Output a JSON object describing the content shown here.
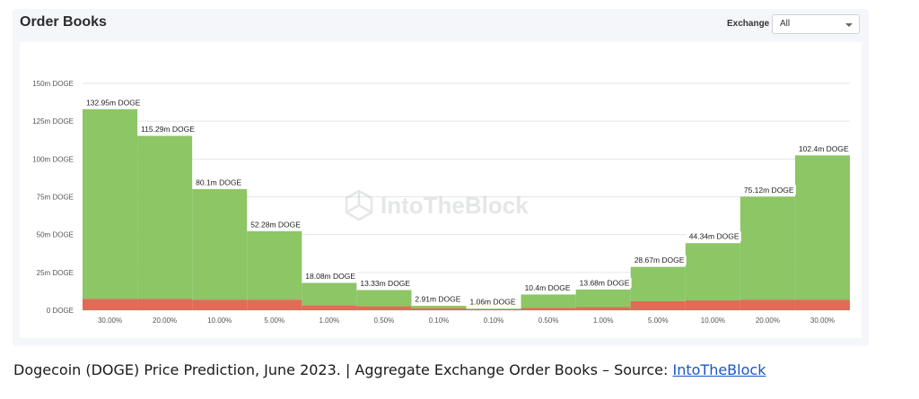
{
  "card": {
    "title": "Order Books",
    "exchange_label": "Exchange",
    "exchange_value": "All"
  },
  "watermark": "IntoTheBlock",
  "caption": {
    "text": "Dogecoin (DOGE) Price Prediction, June 2023. | Aggregate Exchange Order Books – Source: ",
    "link": "IntoTheBlock"
  },
  "colors": {
    "bid": "#8cc665",
    "ask": "#de6c56",
    "gridline": "#e3e6ea",
    "label_bg": "#ffffff"
  },
  "chart_data": {
    "type": "bar",
    "categories": [
      "30.00%",
      "20.00%",
      "10.00%",
      "5.00%",
      "1.00%",
      "0.50%",
      "0.10%",
      "0.10%",
      "0.50%",
      "1.00%",
      "5.00%",
      "10.00%",
      "20.00%",
      "30.00%"
    ],
    "series": [
      {
        "values": [
          7.5,
          7.5,
          7.0,
          7.0,
          3.2,
          2.6,
          1.2,
          0.6,
          1.6,
          2.2,
          6.0,
          6.5,
          7.0,
          7.0
        ]
      },
      {
        "values": [
          125.45,
          107.79,
          73.1,
          45.28,
          14.88,
          10.73,
          1.71,
          0.46,
          8.8,
          11.48,
          22.67,
          37.84,
          68.12,
          95.4
        ]
      }
    ],
    "totals": [
      132.95,
      115.29,
      80.1,
      52.28,
      18.08,
      13.33,
      2.91,
      1.06,
      10.4,
      13.68,
      28.67,
      44.34,
      75.12,
      102.4
    ],
    "data_labels": [
      "132.95m DOGE",
      "115.29m DOGE",
      "80.1m DOGE",
      "52.28m DOGE",
      "18.08m DOGE",
      "13.33m DOGE",
      "2.91m DOGE",
      "1.06m DOGE",
      "10.4m DOGE",
      "13.68m DOGE",
      "28.67m DOGE",
      "44.34m DOGE",
      "75.12m DOGE",
      "102.4m DOGE"
    ],
    "y_ticks": [
      "0 DOGE",
      "25m DOGE",
      "50m DOGE",
      "75m DOGE",
      "100m DOGE",
      "125m DOGE",
      "150m DOGE"
    ],
    "y_tick_values": [
      0,
      25,
      50,
      75,
      100,
      125,
      150
    ],
    "ylim": [
      0,
      150
    ],
    "stacked": true,
    "grid": true,
    "legend": "none"
  }
}
